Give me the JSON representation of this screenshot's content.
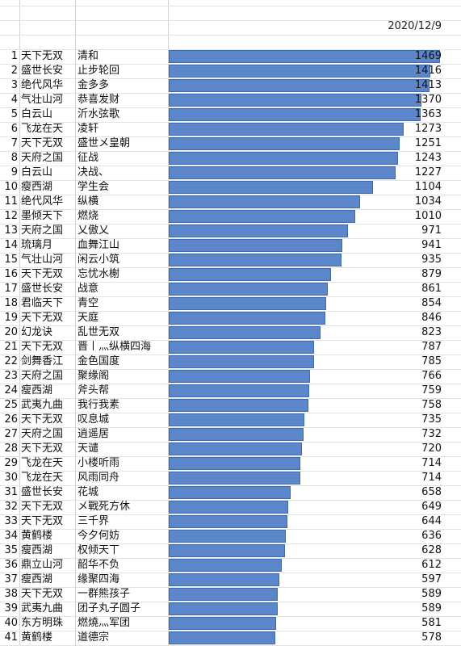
{
  "header": {
    "date": "2020/12/9"
  },
  "chart_data": {
    "type": "bar",
    "orientation": "horizontal",
    "bar_color": "#5b86c9",
    "ranks": [
      1,
      2,
      3,
      4,
      5,
      6,
      7,
      8,
      9,
      10,
      11,
      12,
      13,
      14,
      15,
      16,
      17,
      18,
      19,
      20,
      21,
      22,
      23,
      24,
      25,
      26,
      27,
      28,
      29,
      30,
      31,
      32,
      33,
      34,
      35,
      36,
      37,
      38,
      39,
      40,
      41
    ],
    "servers": [
      "天下无双",
      "盛世长安",
      "绝代风华",
      "气壮山河",
      "白云山",
      "飞龙在天",
      "天下无双",
      "天府之国",
      "白云山",
      "瘦西湖",
      "绝代风华",
      "墨倾天下",
      "天府之国",
      "琉璃月",
      "气壮山河",
      "天下无双",
      "盛世长安",
      "君临天下",
      "天下无双",
      "幻龙诀",
      "天下无双",
      "剑舞香江",
      "天府之国",
      "瘦西湖",
      "武夷九曲",
      "天下无双",
      "天府之国",
      "天下无双",
      "飞龙在天",
      "飞龙在天",
      "盛世长安",
      "天下无双",
      "天下无双",
      "黄鹤楼",
      "瘦西湖",
      "鼎立山河",
      "瘦西湖",
      "天下无双",
      "武夷九曲",
      "东方明珠",
      "黄鹤楼"
    ],
    "categories": [
      "清和",
      "止步轮回",
      "金多多",
      "恭喜发财",
      "沂水弦歌",
      "凌轩",
      "盛世メ皇朝",
      "征战",
      "决战、",
      "学生会",
      "纵横",
      "燃烧",
      "乂傲乂",
      "血舞江山",
      "闲云小筑",
      "忘忧水榭",
      "战意",
      "青空",
      "天庭",
      "乱世无双",
      "晋丨灬纵横四海",
      "金色国度",
      "聚缘阁",
      "斧头帮",
      "我行我素",
      "叹息城",
      "逍遥居",
      "天谴",
      "小楼听雨",
      "风雨同舟",
      "花城",
      "メ戰死方休",
      "三千界",
      "今夕何妨",
      "权倾天丅",
      "韶华不负",
      "缘聚四海",
      "一群熊孩子",
      "团子丸子圆子",
      "燃燒灬军团",
      "道德宗"
    ],
    "values": [
      1469,
      1416,
      1413,
      1370,
      1363,
      1273,
      1251,
      1243,
      1227,
      1104,
      1034,
      1010,
      971,
      941,
      935,
      879,
      861,
      854,
      846,
      823,
      787,
      785,
      766,
      759,
      758,
      735,
      732,
      720,
      714,
      714,
      658,
      649,
      644,
      636,
      628,
      612,
      597,
      589,
      589,
      581,
      578
    ],
    "xlim": [
      0,
      1469
    ]
  }
}
